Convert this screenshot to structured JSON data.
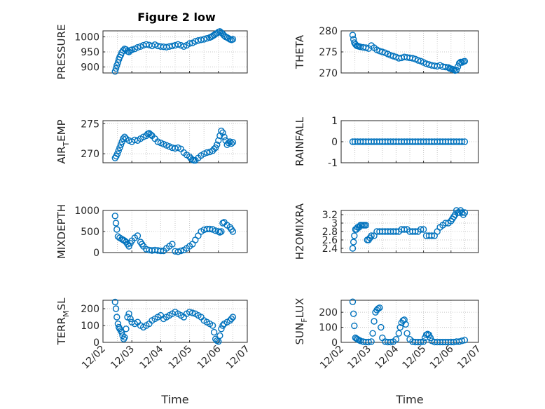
{
  "colors": {
    "marker": "#0072BD",
    "axis": "#262626",
    "grid": "#c8c8c8",
    "background": "#ffffff"
  },
  "figure_title": "Figure 2 low",
  "chart_data": [
    {
      "type": "scatter",
      "id": "pressure",
      "ylabel": "PRESSURE",
      "ylabel_sub": "",
      "ylim": [
        880,
        1020
      ],
      "yticks": [
        900,
        950,
        1000
      ],
      "ytick_labels": [
        "900",
        "950",
        "1000"
      ],
      "xlim": [
        0,
        5
      ],
      "xticks": [
        0,
        1,
        2,
        3,
        4,
        5
      ],
      "xtick_labels": [
        "12/02",
        "12/03",
        "12/04",
        "12/05",
        "12/06",
        "12/07"
      ],
      "show_xtick_labels": false,
      "grid": true,
      "marker": "circle-open",
      "x": [
        0.42,
        0.45,
        0.48,
        0.52,
        0.55,
        0.58,
        0.62,
        0.65,
        0.7,
        0.75,
        0.8,
        0.85,
        0.9,
        0.95,
        1.0,
        1.1,
        1.2,
        1.3,
        1.4,
        1.5,
        1.6,
        1.7,
        1.8,
        1.9,
        2.0,
        2.1,
        2.2,
        2.3,
        2.4,
        2.5,
        2.6,
        2.7,
        2.8,
        2.9,
        3.0,
        3.1,
        3.2,
        3.3,
        3.4,
        3.5,
        3.6,
        3.7,
        3.75,
        3.8,
        3.85,
        3.9,
        3.95,
        4.0,
        4.05,
        4.1,
        4.15,
        4.2,
        4.25,
        4.3,
        4.35,
        4.4,
        4.45,
        4.5
      ],
      "y": [
        885,
        895,
        905,
        915,
        925,
        933,
        940,
        948,
        955,
        960,
        958,
        952,
        950,
        955,
        957,
        960,
        965,
        968,
        972,
        975,
        973,
        970,
        974,
        970,
        968,
        967,
        966,
        968,
        970,
        972,
        975,
        972,
        968,
        972,
        978,
        980,
        985,
        988,
        990,
        992,
        995,
        998,
        1000,
        1003,
        1006,
        1010,
        1012,
        1016,
        1018,
        1014,
        1010,
        1004,
        1000,
        998,
        995,
        992,
        990,
        992
      ]
    },
    {
      "type": "scatter",
      "id": "theta",
      "ylabel": "THETA",
      "ylabel_sub": "",
      "ylim": [
        270,
        280
      ],
      "yticks": [
        270,
        275,
        280
      ],
      "ytick_labels": [
        "270",
        "275",
        "280"
      ],
      "xlim": [
        0,
        5
      ],
      "xticks": [
        0,
        1,
        2,
        3,
        4,
        5
      ],
      "xtick_labels": [
        "12/02",
        "12/03",
        "12/04",
        "12/05",
        "12/06",
        "12/07"
      ],
      "show_xtick_labels": false,
      "grid": true,
      "marker": "circle-open",
      "x": [
        0.42,
        0.45,
        0.48,
        0.52,
        0.56,
        0.6,
        0.65,
        0.7,
        0.8,
        0.9,
        1.0,
        1.1,
        1.2,
        1.3,
        1.4,
        1.5,
        1.6,
        1.7,
        1.8,
        1.9,
        2.0,
        2.1,
        2.2,
        2.3,
        2.4,
        2.5,
        2.6,
        2.7,
        2.8,
        2.9,
        3.0,
        3.1,
        3.2,
        3.3,
        3.4,
        3.5,
        3.6,
        3.7,
        3.8,
        3.9,
        3.95,
        4.0,
        4.05,
        4.1,
        4.15,
        4.2,
        4.25,
        4.3,
        4.35,
        4.4,
        4.45,
        4.5
      ],
      "y": [
        279,
        278,
        277.2,
        276.8,
        276.5,
        276.4,
        276.3,
        276.2,
        276.1,
        276.0,
        275.8,
        276.5,
        276.0,
        275.5,
        275.2,
        275.0,
        274.8,
        274.5,
        274.2,
        274.0,
        273.8,
        273.5,
        273.6,
        273.8,
        273.7,
        273.6,
        273.5,
        273.3,
        273.0,
        272.8,
        272.5,
        272.2,
        272.0,
        271.8,
        271.7,
        271.6,
        271.8,
        271.5,
        271.4,
        271.3,
        271.1,
        271.0,
        270.9,
        270.8,
        270.6,
        270.7,
        271.5,
        272.3,
        272.6,
        272.5,
        272.7,
        272.8
      ]
    },
    {
      "type": "scatter",
      "id": "air-temp",
      "ylabel": "AIR",
      "ylabel_sub": "T",
      "ylabel_tail": "EMP",
      "ylim": [
        268.5,
        275.5
      ],
      "yticks": [
        270,
        275
      ],
      "ytick_labels": [
        "270",
        "275"
      ],
      "xlim": [
        0,
        5
      ],
      "xticks": [
        0,
        1,
        2,
        3,
        4,
        5
      ],
      "xtick_labels": [
        "12/02",
        "12/03",
        "12/04",
        "12/05",
        "12/06",
        "12/07"
      ],
      "show_xtick_labels": false,
      "grid": true,
      "marker": "circle-open",
      "x": [
        0.42,
        0.46,
        0.5,
        0.54,
        0.58,
        0.62,
        0.66,
        0.7,
        0.75,
        0.8,
        0.9,
        1.0,
        1.1,
        1.2,
        1.3,
        1.4,
        1.5,
        1.55,
        1.6,
        1.65,
        1.7,
        1.8,
        1.9,
        2.0,
        2.1,
        2.2,
        2.3,
        2.4,
        2.5,
        2.6,
        2.7,
        2.8,
        2.9,
        3.0,
        3.05,
        3.1,
        3.15,
        3.2,
        3.3,
        3.4,
        3.5,
        3.6,
        3.7,
        3.8,
        3.85,
        3.9,
        3.95,
        4.0,
        4.05,
        4.1,
        4.15,
        4.2,
        4.25,
        4.3,
        4.35,
        4.4,
        4.45,
        4.5
      ],
      "y": [
        269.3,
        269.6,
        270.0,
        270.5,
        271.0,
        271.5,
        272.0,
        272.5,
        272.8,
        272.5,
        272.2,
        272.0,
        272.3,
        272.2,
        272.5,
        272.8,
        273.0,
        273.3,
        273.4,
        273.2,
        273.0,
        272.5,
        272.0,
        271.8,
        271.6,
        271.4,
        271.2,
        271.0,
        270.9,
        271.0,
        270.8,
        270.2,
        269.8,
        269.5,
        269.2,
        269.0,
        268.9,
        268.9,
        269.3,
        269.7,
        270.0,
        270.2,
        270.3,
        270.5,
        270.8,
        271.0,
        271.5,
        272.2,
        273.0,
        273.8,
        273.5,
        272.8,
        272.2,
        271.5,
        271.8,
        272.0,
        271.7,
        271.9
      ]
    },
    {
      "type": "scatter",
      "id": "rainfall",
      "ylabel": "RAINFALL",
      "ylabel_sub": "",
      "ylim": [
        -1,
        1
      ],
      "yticks": [
        -1,
        0,
        1
      ],
      "ytick_labels": [
        "-1",
        "0",
        "1"
      ],
      "xlim": [
        0,
        5
      ],
      "xticks": [
        0,
        1,
        2,
        3,
        4,
        5
      ],
      "xtick_labels": [
        "12/02",
        "12/03",
        "12/04",
        "12/05",
        "12/06",
        "12/07"
      ],
      "show_xtick_labels": false,
      "grid": true,
      "marker": "circle-open",
      "x": [
        0.42,
        0.5,
        0.6,
        0.7,
        0.8,
        0.9,
        1.0,
        1.1,
        1.2,
        1.3,
        1.4,
        1.5,
        1.6,
        1.7,
        1.8,
        1.9,
        2.0,
        2.1,
        2.2,
        2.3,
        2.4,
        2.5,
        2.6,
        2.7,
        2.8,
        2.9,
        3.0,
        3.1,
        3.2,
        3.3,
        3.4,
        3.5,
        3.6,
        3.7,
        3.8,
        3.9,
        4.0,
        4.1,
        4.2,
        4.3,
        4.4,
        4.5
      ],
      "y": [
        0,
        0,
        0,
        0,
        0,
        0,
        0,
        0,
        0,
        0,
        0,
        0,
        0,
        0,
        0,
        0,
        0,
        0,
        0,
        0,
        0,
        0,
        0,
        0,
        0,
        0,
        0,
        0,
        0,
        0,
        0,
        0,
        0,
        0,
        0,
        0,
        0,
        0,
        0,
        0,
        0,
        0
      ]
    },
    {
      "type": "scatter",
      "id": "mixdepth",
      "ylabel": "MIXDEPTH",
      "ylabel_sub": "",
      "ylim": [
        0,
        1000
      ],
      "yticks": [
        0,
        500,
        1000
      ],
      "ytick_labels": [
        "0",
        "500",
        "1000"
      ],
      "xlim": [
        0,
        5
      ],
      "xticks": [
        0,
        1,
        2,
        3,
        4,
        5
      ],
      "xtick_labels": [
        "12/02",
        "12/03",
        "12/04",
        "12/05",
        "12/06",
        "12/07"
      ],
      "show_xtick_labels": false,
      "grid": true,
      "marker": "circle-open",
      "x": [
        0.42,
        0.45,
        0.48,
        0.52,
        0.58,
        0.65,
        0.7,
        0.75,
        0.8,
        0.85,
        0.9,
        0.95,
        1.0,
        1.1,
        1.2,
        1.3,
        1.35,
        1.4,
        1.5,
        1.6,
        1.7,
        1.8,
        1.9,
        2.0,
        2.1,
        2.2,
        2.3,
        2.4,
        2.5,
        2.6,
        2.7,
        2.8,
        2.9,
        3.0,
        3.1,
        3.2,
        3.3,
        3.4,
        3.5,
        3.6,
        3.7,
        3.8,
        3.9,
        4.0,
        4.05,
        4.1,
        4.15,
        4.2,
        4.3,
        4.4,
        4.45,
        4.5
      ],
      "y": [
        870,
        700,
        550,
        380,
        350,
        320,
        300,
        280,
        250,
        200,
        150,
        220,
        280,
        350,
        400,
        250,
        200,
        150,
        80,
        60,
        50,
        60,
        50,
        40,
        40,
        100,
        150,
        200,
        30,
        20,
        40,
        60,
        100,
        150,
        200,
        300,
        400,
        500,
        540,
        560,
        560,
        550,
        520,
        500,
        480,
        500,
        700,
        720,
        650,
        600,
        550,
        500
      ]
    },
    {
      "type": "scatter",
      "id": "h2omixra",
      "ylabel": "H2OMIXRA",
      "ylabel_sub": "",
      "ylim": [
        2.3,
        3.3
      ],
      "yticks": [
        2.4,
        2.6,
        2.8,
        3.0,
        3.2
      ],
      "ytick_labels": [
        "2.4",
        "2.6",
        "2.8",
        "3",
        "3.2"
      ],
      "xlim": [
        0,
        5
      ],
      "xticks": [
        0,
        1,
        2,
        3,
        4,
        5
      ],
      "xtick_labels": [
        "12/02",
        "12/03",
        "12/04",
        "12/05",
        "12/06",
        "12/07"
      ],
      "show_xtick_labels": false,
      "grid": true,
      "marker": "circle-open",
      "x": [
        0.42,
        0.45,
        0.48,
        0.52,
        0.56,
        0.6,
        0.65,
        0.7,
        0.75,
        0.8,
        0.85,
        0.9,
        0.95,
        1.0,
        1.05,
        1.1,
        1.2,
        1.3,
        1.4,
        1.5,
        1.6,
        1.7,
        1.8,
        1.9,
        2.0,
        2.1,
        2.2,
        2.3,
        2.4,
        2.5,
        2.6,
        2.7,
        2.8,
        2.9,
        3.0,
        3.1,
        3.2,
        3.3,
        3.4,
        3.5,
        3.6,
        3.7,
        3.8,
        3.9,
        4.0,
        4.05,
        4.1,
        4.15,
        4.2,
        4.25,
        4.3,
        4.35,
        4.4,
        4.45,
        4.5
      ],
      "y": [
        2.4,
        2.55,
        2.7,
        2.85,
        2.85,
        2.9,
        2.9,
        2.95,
        2.95,
        2.95,
        2.95,
        2.95,
        2.6,
        2.6,
        2.65,
        2.7,
        2.7,
        2.8,
        2.8,
        2.8,
        2.8,
        2.8,
        2.8,
        2.8,
        2.8,
        2.8,
        2.85,
        2.85,
        2.85,
        2.8,
        2.8,
        2.8,
        2.8,
        2.85,
        2.85,
        2.7,
        2.7,
        2.7,
        2.7,
        2.8,
        2.9,
        2.95,
        3.0,
        3.0,
        3.05,
        3.1,
        3.15,
        3.2,
        3.3,
        3.25,
        3.25,
        3.3,
        3.25,
        3.2,
        3.25
      ]
    },
    {
      "type": "scatter",
      "id": "terr-msl",
      "ylabel": "TERR",
      "ylabel_sub": "M",
      "ylabel_tail": "SL",
      "ylim": [
        0,
        250
      ],
      "yticks": [
        0,
        100,
        200
      ],
      "ytick_labels": [
        "0",
        "100",
        "200"
      ],
      "xlim": [
        0,
        5
      ],
      "xticks": [
        0,
        1,
        2,
        3,
        4,
        5
      ],
      "xtick_labels": [
        "12/02",
        "12/03",
        "12/04",
        "12/05",
        "12/06",
        "12/07"
      ],
      "show_xtick_labels": true,
      "xlabel": "Time",
      "grid": true,
      "marker": "circle-open",
      "x": [
        0.42,
        0.45,
        0.48,
        0.52,
        0.55,
        0.58,
        0.62,
        0.65,
        0.68,
        0.72,
        0.75,
        0.8,
        0.85,
        0.9,
        0.95,
        1.0,
        1.1,
        1.2,
        1.3,
        1.4,
        1.5,
        1.6,
        1.7,
        1.8,
        1.9,
        2.0,
        2.1,
        2.2,
        2.3,
        2.4,
        2.5,
        2.6,
        2.7,
        2.8,
        2.9,
        3.0,
        3.1,
        3.2,
        3.3,
        3.4,
        3.5,
        3.6,
        3.7,
        3.8,
        3.85,
        3.9,
        3.95,
        4.0,
        4.05,
        4.1,
        4.15,
        4.2,
        4.3,
        4.4,
        4.45,
        4.5
      ],
      "y": [
        240,
        200,
        150,
        110,
        90,
        80,
        70,
        60,
        40,
        20,
        30,
        80,
        150,
        170,
        140,
        120,
        110,
        120,
        100,
        90,
        100,
        110,
        130,
        140,
        150,
        160,
        140,
        150,
        160,
        170,
        180,
        170,
        160,
        150,
        170,
        180,
        175,
        170,
        160,
        150,
        130,
        120,
        110,
        100,
        60,
        20,
        10,
        5,
        40,
        80,
        100,
        110,
        120,
        130,
        140,
        150
      ]
    },
    {
      "type": "scatter",
      "id": "sun-flux",
      "ylabel": "SUN",
      "ylabel_sub": "F",
      "ylabel_tail": "LUX",
      "ylim": [
        0,
        280
      ],
      "yticks": [
        0,
        100,
        200
      ],
      "ytick_labels": [
        "0",
        "100",
        "200"
      ],
      "xlim": [
        0,
        5
      ],
      "xticks": [
        0,
        1,
        2,
        3,
        4,
        5
      ],
      "xtick_labels": [
        "12/02",
        "12/03",
        "12/04",
        "12/05",
        "12/06",
        "12/07"
      ],
      "show_xtick_labels": true,
      "xlabel": "Time",
      "grid": true,
      "marker": "circle-open",
      "x": [
        0.42,
        0.45,
        0.48,
        0.52,
        0.56,
        0.6,
        0.65,
        0.7,
        0.8,
        0.9,
        1.0,
        1.1,
        1.15,
        1.2,
        1.25,
        1.3,
        1.35,
        1.4,
        1.45,
        1.5,
        1.6,
        1.7,
        1.8,
        1.9,
        2.0,
        2.1,
        2.15,
        2.2,
        2.25,
        2.3,
        2.35,
        2.4,
        2.5,
        2.6,
        2.7,
        2.8,
        2.9,
        3.0,
        3.05,
        3.1,
        3.15,
        3.2,
        3.25,
        3.3,
        3.4,
        3.5,
        3.6,
        3.7,
        3.8,
        3.9,
        4.0,
        4.1,
        4.2,
        4.3,
        4.4,
        4.5
      ],
      "y": [
        270,
        190,
        110,
        30,
        25,
        20,
        15,
        10,
        5,
        2,
        2,
        5,
        60,
        140,
        200,
        215,
        225,
        230,
        100,
        30,
        5,
        2,
        2,
        5,
        20,
        60,
        100,
        130,
        145,
        150,
        120,
        60,
        20,
        5,
        2,
        2,
        2,
        5,
        30,
        50,
        55,
        50,
        30,
        10,
        2,
        2,
        2,
        2,
        2,
        2,
        2,
        2,
        5,
        5,
        10,
        15
      ]
    }
  ]
}
